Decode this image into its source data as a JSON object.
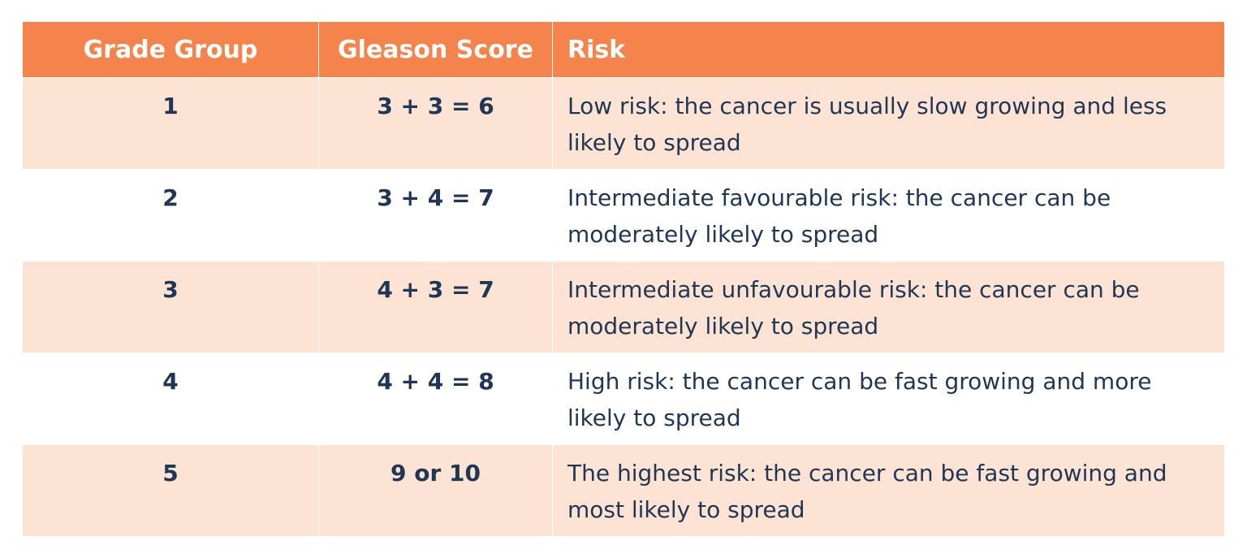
{
  "table": {
    "header": [
      "Grade Group",
      "Gleason Score",
      "Risk"
    ],
    "rows": [
      [
        "1",
        "3 + 3 = 6",
        "Low risk: the cancer is usually slow growing and less likely to spread"
      ],
      [
        "2",
        "3 + 4 = 7",
        "Intermediate favourable risk: the cancer can be moderately likely to spread"
      ],
      [
        "3",
        "4 + 3 = 7",
        "Intermediate unfavourable risk: the cancer can be moderately likely to spread"
      ],
      [
        "4",
        "4 + 4 = 8",
        "High risk: the cancer can be fast growing and more likely to spread"
      ],
      [
        "5",
        "9 or 10",
        "The highest risk: the cancer can be fast growing and most likely to spread"
      ]
    ]
  }
}
